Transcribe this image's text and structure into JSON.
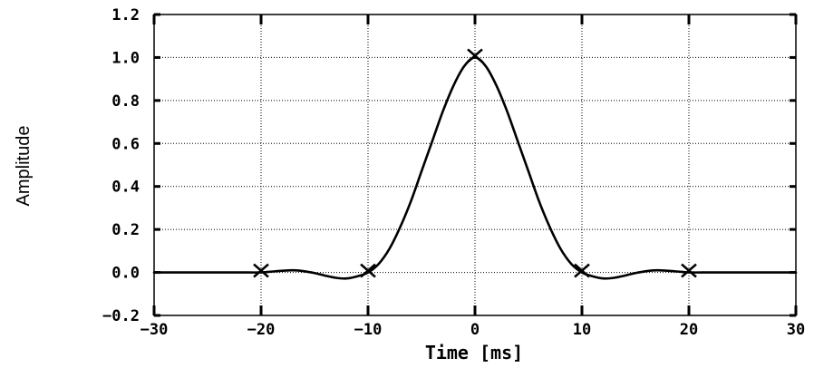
{
  "chart_data": {
    "type": "line",
    "title": "",
    "xlabel": "Time [ms]",
    "ylabel": "Amplitude",
    "xlim": [
      -30,
      30
    ],
    "ylim": [
      -0.2,
      1.2
    ],
    "xticks": [
      -30,
      -20,
      -10,
      0,
      10,
      20,
      30
    ],
    "xtick_labels": [
      "−30",
      "−20",
      "−10",
      "0",
      "10",
      "20",
      "30"
    ],
    "yticks": [
      -0.2,
      0.0,
      0.2,
      0.4,
      0.6,
      0.8,
      1.0,
      1.2
    ],
    "ytick_labels": [
      "−0.2",
      "0.0",
      "0.2",
      "0.4",
      "0.6",
      "0.8",
      "1.0",
      "1.2"
    ],
    "grid": true,
    "series": [
      {
        "x": [
          -30,
          -28,
          -26,
          -24,
          -22,
          -20,
          -19,
          -18,
          -17,
          -16,
          -15,
          -14,
          -13,
          -12,
          -11,
          -10,
          -9,
          -8,
          -7,
          -6,
          -5,
          -4,
          -3,
          -2,
          -1,
          0,
          1,
          2,
          3,
          4,
          5,
          6,
          7,
          8,
          9,
          10,
          11,
          12,
          13,
          14,
          15,
          16,
          17,
          18,
          19,
          20,
          22,
          24,
          26,
          28,
          30
        ],
        "y": [
          0.0,
          0.0,
          0.0,
          0.0,
          0.0,
          0.0,
          0.004,
          0.008,
          0.01,
          0.006,
          -0.003,
          -0.015,
          -0.025,
          -0.028,
          -0.018,
          0.0,
          0.04,
          0.11,
          0.21,
          0.33,
          0.47,
          0.61,
          0.75,
          0.87,
          0.96,
          1.0,
          0.96,
          0.87,
          0.75,
          0.61,
          0.47,
          0.33,
          0.21,
          0.11,
          0.04,
          0.0,
          -0.018,
          -0.028,
          -0.025,
          -0.015,
          -0.003,
          0.006,
          0.01,
          0.008,
          0.004,
          0.0,
          0.0,
          0.0,
          0.0,
          0.0,
          0.0
        ]
      }
    ],
    "markers": {
      "symbol": "X",
      "points": [
        {
          "x": -20,
          "y": 0.0
        },
        {
          "x": -10,
          "y": 0.0
        },
        {
          "x": 0,
          "y": 1.0
        },
        {
          "x": 10,
          "y": 0.0
        },
        {
          "x": 20,
          "y": 0.0
        }
      ]
    }
  }
}
